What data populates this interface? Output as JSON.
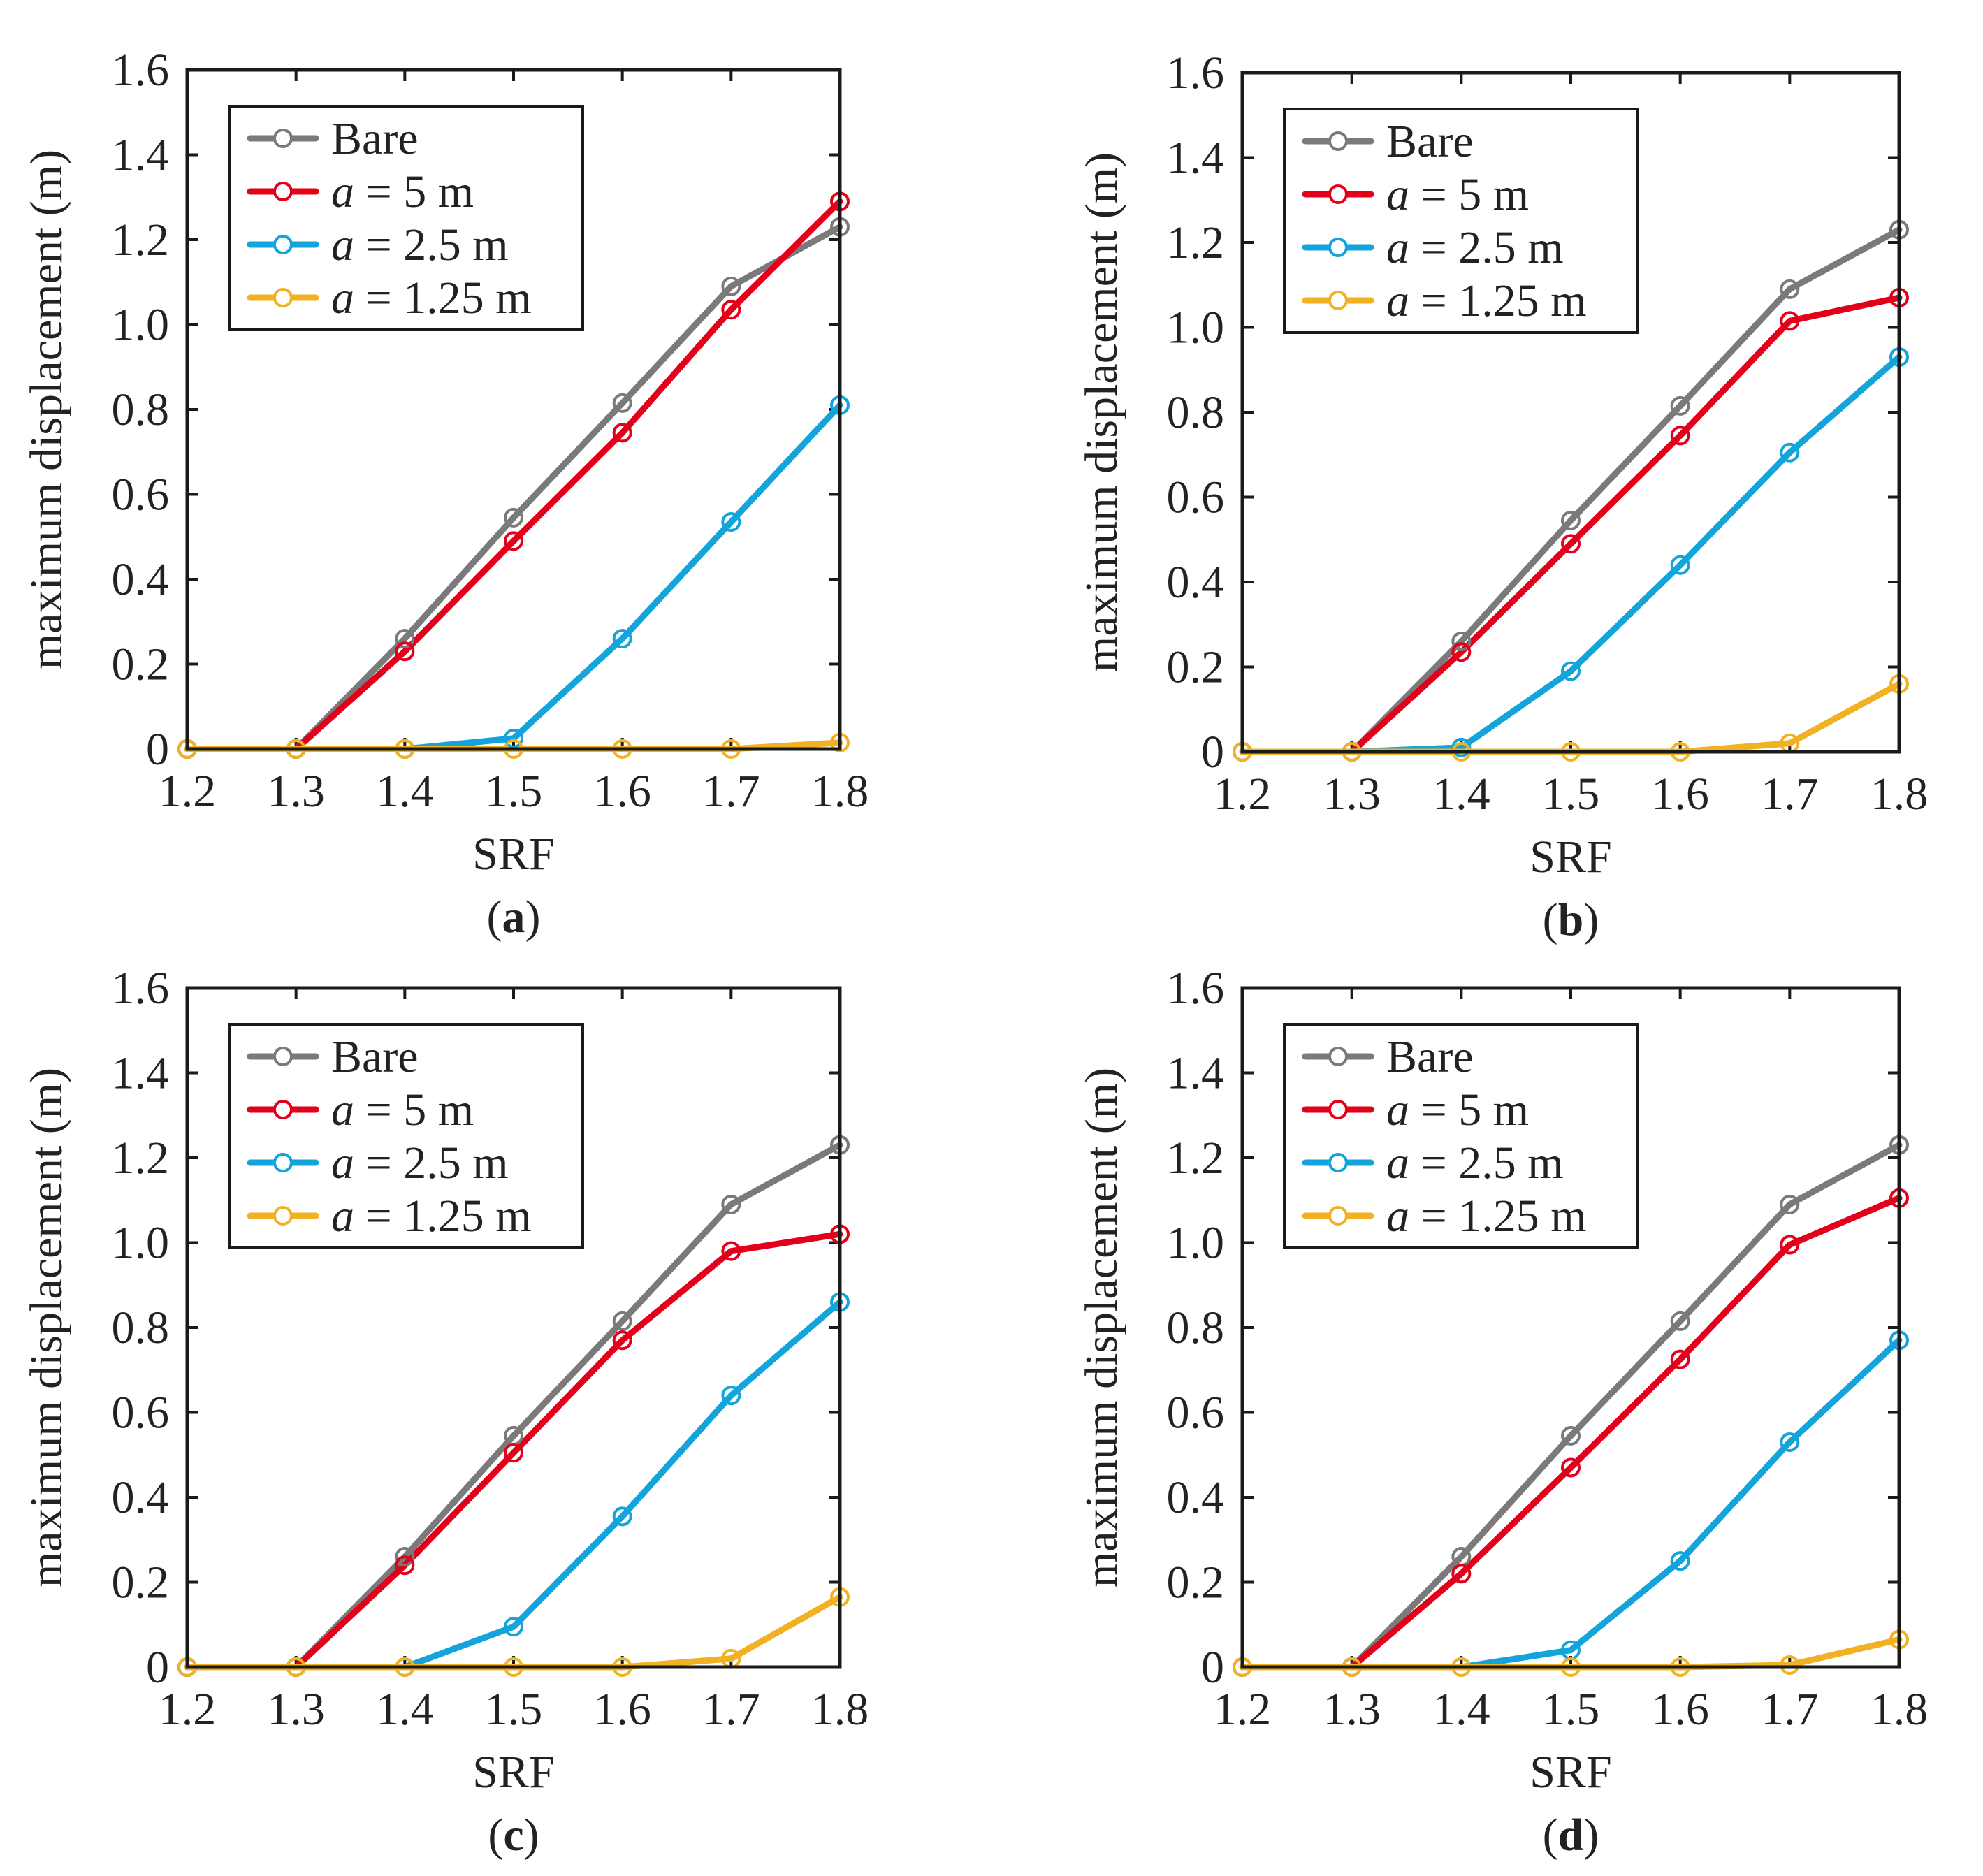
{
  "colors": {
    "bare": "#7a7a7a",
    "a5": "#e3001b",
    "a25": "#13a4dc",
    "a125": "#f2b122",
    "axis": "#1a1a1a"
  },
  "chart_data": [
    {
      "type": "line",
      "panel_label": "a",
      "xlabel": "SRF",
      "ylabel": "maximum displacement (m)",
      "xlim": [
        1.2,
        1.8
      ],
      "ylim": [
        0,
        1.6
      ],
      "xticks": [
        "1.2",
        "1.3",
        "1.4",
        "1.5",
        "1.6",
        "1.7",
        "1.8"
      ],
      "yticks": [
        "0",
        "0.2",
        "0.4",
        "0.6",
        "0.8",
        "1.0",
        "1.2",
        "1.4",
        "1.6"
      ],
      "legend_position": "top-left",
      "x": [
        1.2,
        1.3,
        1.4,
        1.5,
        1.6,
        1.7,
        1.8
      ],
      "series": [
        {
          "name": "Bare",
          "prefix": "",
          "italic": "",
          "suffix": "",
          "color_key": "bare",
          "values": [
            0,
            0,
            0.26,
            0.545,
            0.815,
            1.09,
            1.23
          ]
        },
        {
          "name": "a = 5 m",
          "prefix": "",
          "italic": "a",
          "suffix": " = 5 m",
          "color_key": "a5",
          "values": [
            0,
            0,
            0.23,
            0.49,
            0.745,
            1.035,
            1.29
          ]
        },
        {
          "name": "a = 2.5 m",
          "prefix": "",
          "italic": "a",
          "suffix": " = 2.5 m",
          "color_key": "a25",
          "values": [
            0,
            0,
            0,
            0.025,
            0.26,
            0.535,
            0.81
          ]
        },
        {
          "name": "a = 1.25 m",
          "prefix": "",
          "italic": "a",
          "suffix": " = 1.25 m",
          "color_key": "a125",
          "values": [
            0,
            0,
            0,
            0,
            0,
            0,
            0.015
          ]
        }
      ]
    },
    {
      "type": "line",
      "panel_label": "b",
      "xlabel": "SRF",
      "ylabel": "maximum displacement (m)",
      "xlim": [
        1.2,
        1.8
      ],
      "ylim": [
        0,
        1.6
      ],
      "xticks": [
        "1.2",
        "1.3",
        "1.4",
        "1.5",
        "1.6",
        "1.7",
        "1.8"
      ],
      "yticks": [
        "0",
        "0.2",
        "0.4",
        "0.6",
        "0.8",
        "1.0",
        "1.2",
        "1.4",
        "1.6"
      ],
      "legend_position": "top-left",
      "x": [
        1.2,
        1.3,
        1.4,
        1.5,
        1.6,
        1.7,
        1.8
      ],
      "series": [
        {
          "name": "Bare",
          "prefix": "",
          "italic": "",
          "suffix": "",
          "color_key": "bare",
          "values": [
            0,
            0,
            0.26,
            0.545,
            0.815,
            1.09,
            1.23
          ]
        },
        {
          "name": "a = 5 m",
          "prefix": "",
          "italic": "a",
          "suffix": " = 5 m",
          "color_key": "a5",
          "values": [
            0,
            0,
            0.235,
            0.49,
            0.745,
            1.015,
            1.07
          ]
        },
        {
          "name": "a = 2.5 m",
          "prefix": "",
          "italic": "a",
          "suffix": " = 2.5 m",
          "color_key": "a25",
          "values": [
            0,
            0,
            0.01,
            0.19,
            0.44,
            0.705,
            0.93
          ]
        },
        {
          "name": "a = 1.25 m",
          "prefix": "",
          "italic": "a",
          "suffix": " = 1.25 m",
          "color_key": "a125",
          "values": [
            0,
            0,
            0,
            0,
            0,
            0.02,
            0.16
          ]
        }
      ]
    },
    {
      "type": "line",
      "panel_label": "c",
      "xlabel": "SRF",
      "ylabel": "maximum displacement (m)",
      "xlim": [
        1.2,
        1.8
      ],
      "ylim": [
        0,
        1.6
      ],
      "xticks": [
        "1.2",
        "1.3",
        "1.4",
        "1.5",
        "1.6",
        "1.7",
        "1.8"
      ],
      "yticks": [
        "0",
        "0.2",
        "0.4",
        "0.6",
        "0.8",
        "1.0",
        "1.2",
        "1.4",
        "1.6"
      ],
      "legend_position": "top-left",
      "x": [
        1.2,
        1.3,
        1.4,
        1.5,
        1.6,
        1.7,
        1.8
      ],
      "series": [
        {
          "name": "Bare",
          "prefix": "",
          "italic": "",
          "suffix": "",
          "color_key": "bare",
          "values": [
            0,
            0,
            0.26,
            0.545,
            0.815,
            1.09,
            1.23
          ]
        },
        {
          "name": "a = 5 m",
          "prefix": "",
          "italic": "a",
          "suffix": " = 5 m",
          "color_key": "a5",
          "values": [
            0,
            0,
            0.24,
            0.505,
            0.77,
            0.98,
            1.02
          ]
        },
        {
          "name": "a = 2.5 m",
          "prefix": "",
          "italic": "a",
          "suffix": " = 2.5 m",
          "color_key": "a25",
          "values": [
            0,
            0,
            0,
            0.095,
            0.355,
            0.64,
            0.86
          ]
        },
        {
          "name": "a = 1.25 m",
          "prefix": "",
          "italic": "a",
          "suffix": " = 1.25 m",
          "color_key": "a125",
          "values": [
            0,
            0,
            0,
            0,
            0,
            0.02,
            0.165
          ]
        }
      ]
    },
    {
      "type": "line",
      "panel_label": "d",
      "xlabel": "SRF",
      "ylabel": "maximum displacement (m)",
      "xlim": [
        1.2,
        1.8
      ],
      "ylim": [
        0,
        1.6
      ],
      "xticks": [
        "1.2",
        "1.3",
        "1.4",
        "1.5",
        "1.6",
        "1.7",
        "1.8"
      ],
      "yticks": [
        "0",
        "0.2",
        "0.4",
        "0.6",
        "0.8",
        "1.0",
        "1.2",
        "1.4",
        "1.6"
      ],
      "legend_position": "top-left",
      "x": [
        1.2,
        1.3,
        1.4,
        1.5,
        1.6,
        1.7,
        1.8
      ],
      "series": [
        {
          "name": "Bare",
          "prefix": "",
          "italic": "",
          "suffix": "",
          "color_key": "bare",
          "values": [
            0,
            0,
            0.26,
            0.545,
            0.815,
            1.09,
            1.23
          ]
        },
        {
          "name": "a = 5 m",
          "prefix": "",
          "italic": "a",
          "suffix": " = 5 m",
          "color_key": "a5",
          "values": [
            0,
            0,
            0.22,
            0.47,
            0.725,
            0.995,
            1.105
          ]
        },
        {
          "name": "a = 2.5 m",
          "prefix": "",
          "italic": "a",
          "suffix": " = 2.5 m",
          "color_key": "a25",
          "values": [
            0,
            0,
            0,
            0.04,
            0.25,
            0.53,
            0.77
          ]
        },
        {
          "name": "a = 1.25 m",
          "prefix": "",
          "italic": "a",
          "suffix": " = 1.25 m",
          "color_key": "a125",
          "values": [
            0,
            0,
            0,
            0,
            0,
            0.005,
            0.065
          ]
        }
      ]
    }
  ]
}
